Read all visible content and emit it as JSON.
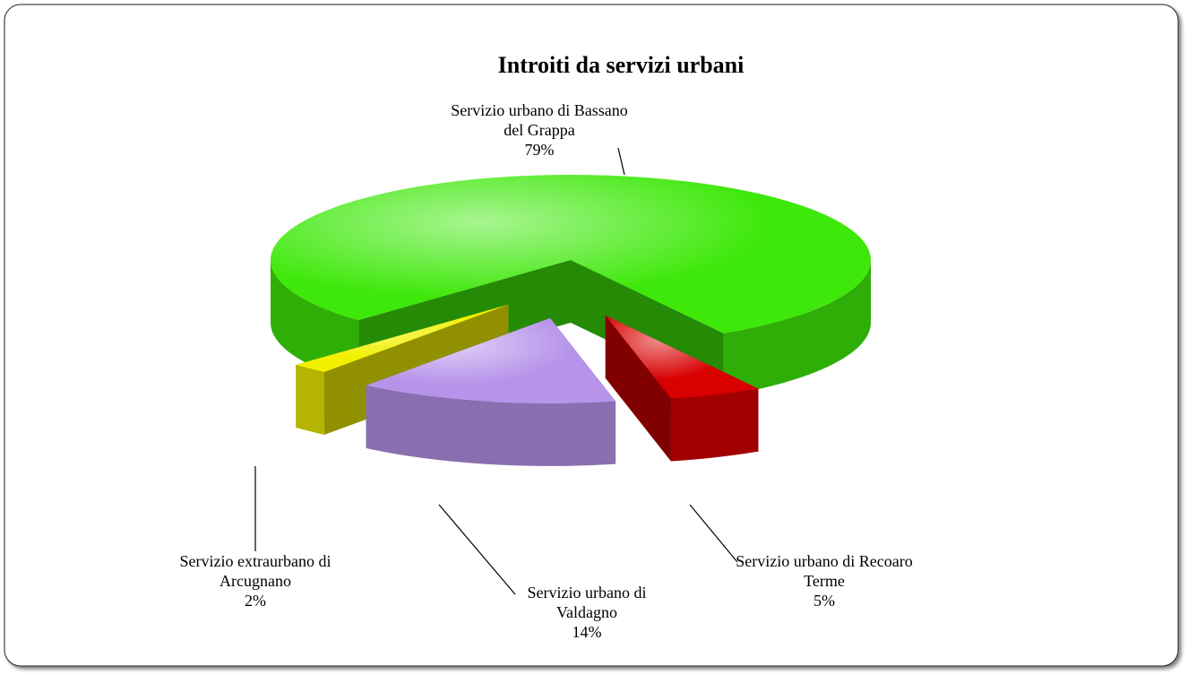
{
  "chart_data": {
    "type": "pie",
    "title": "Introiti da servizi urbani",
    "categories": [
      "Servizio urbano di Bassano del Grappa",
      "Servizio urbano di Recoaro Terme",
      "Servizio urbano di Valdagno",
      "Servizio extraurbano di Arcugnano"
    ],
    "values": [
      79,
      5,
      14,
      2
    ],
    "value_labels": [
      "79%",
      "5%",
      "14%",
      "2%"
    ],
    "colors": [
      "#3ee80a",
      "#d80000",
      "#b794ea",
      "#f2f000"
    ]
  }
}
